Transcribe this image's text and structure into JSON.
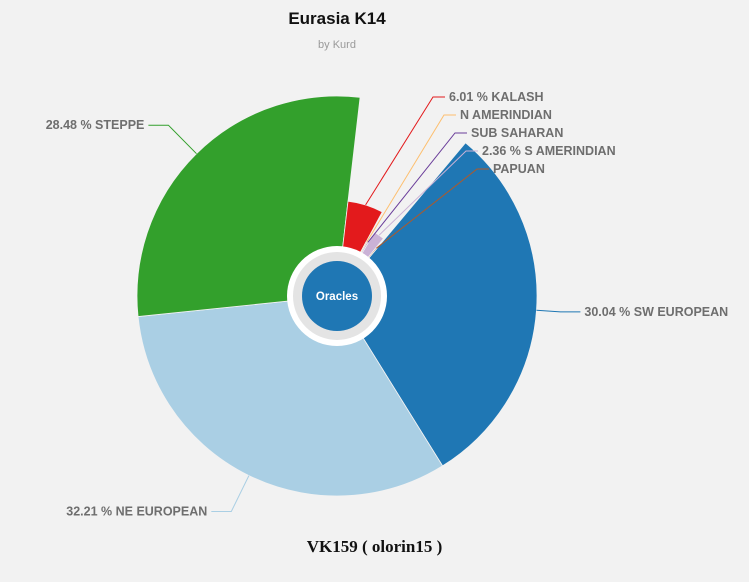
{
  "chart_data": {
    "type": "pie",
    "title": "Eurasia K14",
    "subtitle": "by Kurd",
    "center_label": "Oracles",
    "series": [
      {
        "label": "SW EUROPEAN",
        "value": 30.04,
        "value_text": "30.04 %",
        "color": "#1f77b4"
      },
      {
        "label": "NE EUROPEAN",
        "value": 32.21,
        "value_text": "32.21 %",
        "color": "#aacfe4"
      },
      {
        "label": "STEPPE",
        "value": 28.48,
        "value_text": "28.48 %",
        "color": "#33a02c"
      },
      {
        "label": "KALASH",
        "value": 6.01,
        "value_text": "6.01 %",
        "color": "#e31a1c"
      },
      {
        "label": "N AMERINDIAN",
        "value": 0.3,
        "value_text": "",
        "color": "#fdbf6f"
      },
      {
        "label": "SUB SAHARAN",
        "value": 0.3,
        "value_text": "",
        "color": "#6a3d9a"
      },
      {
        "label": "S AMERINDIAN",
        "value": 2.36,
        "value_text": "2.36 %",
        "color": "#cab2d6"
      },
      {
        "label": "PAPUAN",
        "value": 0.3,
        "value_text": "",
        "color": "#b15928"
      }
    ]
  },
  "footer": "VK159 ( olorin15 )"
}
